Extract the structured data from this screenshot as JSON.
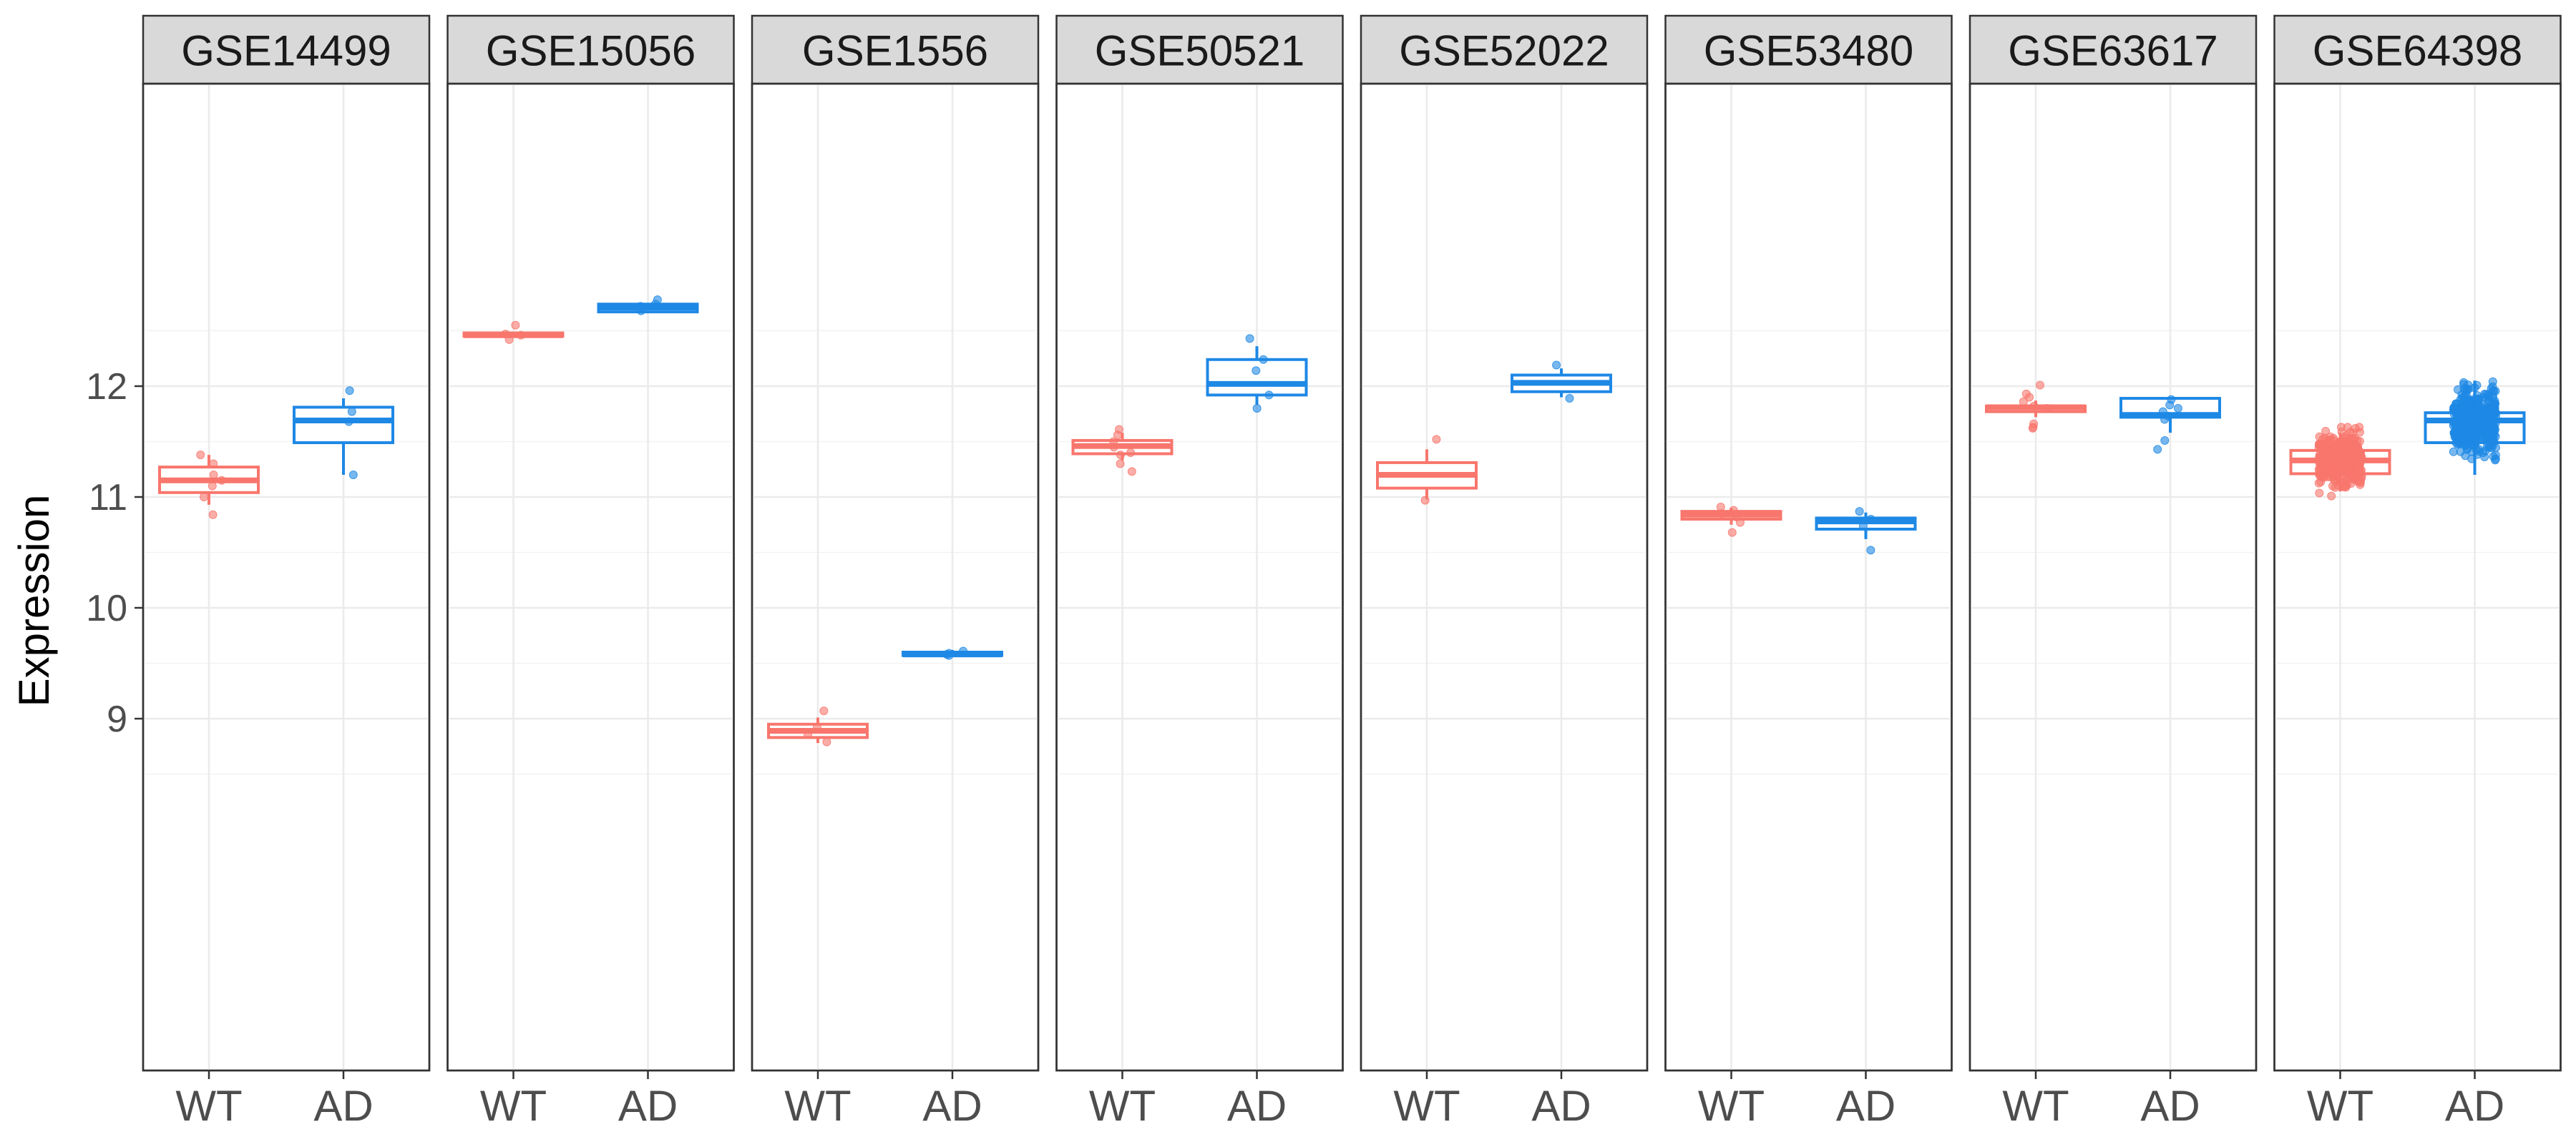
{
  "chart_data": {
    "type": "boxplot",
    "ylabel": "Expression",
    "xlabel": "",
    "ylim": [
      8.6,
      13.0
    ],
    "yticks": [
      9,
      10,
      11,
      12
    ],
    "grid": true,
    "colors": {
      "WT": "#F8766D",
      "AD": "#1E88E5"
    },
    "groups": [
      "WT",
      "AD"
    ],
    "panels": [
      {
        "name": "GSE14499",
        "WT": {
          "lower": 10.93,
          "q1": 11.04,
          "median": 11.15,
          "q3": 11.27,
          "upper": 11.38,
          "points": [
            10.84,
            11.0,
            11.1,
            11.15,
            11.2,
            11.3,
            11.38
          ]
        },
        "AD": {
          "lower": 11.2,
          "q1": 11.49,
          "median": 11.69,
          "q3": 11.81,
          "upper": 11.89,
          "points": [
            11.2,
            11.68,
            11.77,
            11.96
          ]
        }
      },
      {
        "name": "GSE15056",
        "WT": {
          "lower": 12.45,
          "q1": 12.45,
          "median": 12.46,
          "q3": 12.48,
          "upper": 12.49,
          "points": [
            12.42,
            12.46,
            12.47,
            12.55
          ]
        },
        "AD": {
          "lower": 12.67,
          "q1": 12.67,
          "median": 12.71,
          "q3": 12.74,
          "upper": 12.75,
          "points": [
            12.68,
            12.72,
            12.74,
            12.78
          ]
        }
      },
      {
        "name": "GSE1556",
        "WT": {
          "lower": 8.78,
          "q1": 8.83,
          "median": 8.89,
          "q3": 8.95,
          "upper": 9.01,
          "points": [
            8.79,
            8.86,
            8.92,
            9.07
          ]
        },
        "AD": {
          "lower": 9.56,
          "q1": 9.57,
          "median": 9.58,
          "q3": 9.6,
          "upper": 9.62,
          "points": [
            9.57,
            9.58,
            9.59,
            9.61
          ]
        }
      },
      {
        "name": "GSE50521",
        "WT": {
          "lower": 11.33,
          "q1": 11.39,
          "median": 11.46,
          "q3": 11.51,
          "upper": 11.58,
          "points": [
            11.23,
            11.3,
            11.38,
            11.4,
            11.45,
            11.5,
            11.56,
            11.61
          ]
        },
        "AD": {
          "lower": 11.83,
          "q1": 11.92,
          "median": 12.02,
          "q3": 12.24,
          "upper": 12.36,
          "points": [
            11.8,
            11.92,
            12.14,
            12.24,
            12.43
          ]
        }
      },
      {
        "name": "GSE52022",
        "WT": {
          "lower": 10.98,
          "q1": 11.08,
          "median": 11.2,
          "q3": 11.31,
          "upper": 11.43,
          "points": [
            10.97,
            11.52
          ]
        },
        "AD": {
          "lower": 11.9,
          "q1": 11.95,
          "median": 12.03,
          "q3": 12.1,
          "upper": 12.16,
          "points": [
            11.89,
            12.19
          ]
        }
      },
      {
        "name": "GSE53480",
        "WT": {
          "lower": 10.75,
          "q1": 10.8,
          "median": 10.84,
          "q3": 10.87,
          "upper": 10.9,
          "points": [
            10.68,
            10.77,
            10.82,
            10.85,
            10.88,
            10.91
          ]
        },
        "AD": {
          "lower": 10.62,
          "q1": 10.71,
          "median": 10.78,
          "q3": 10.81,
          "upper": 10.86,
          "points": [
            10.52,
            10.74,
            10.8,
            10.87
          ]
        }
      },
      {
        "name": "GSE63617",
        "WT": {
          "lower": 11.72,
          "q1": 11.77,
          "median": 11.81,
          "q3": 11.82,
          "upper": 11.87,
          "points": [
            11.62,
            11.63,
            11.66,
            11.8,
            11.82,
            11.86,
            11.9,
            11.93,
            12.01
          ]
        },
        "AD": {
          "lower": 11.58,
          "q1": 11.72,
          "median": 11.74,
          "q3": 11.89,
          "upper": 11.9,
          "points": [
            11.43,
            11.51,
            11.7,
            11.73,
            11.77,
            11.8,
            11.83,
            11.88
          ]
        }
      },
      {
        "name": "GSE64398",
        "WT": {
          "lower": 11.05,
          "q1": 11.21,
          "median": 11.33,
          "q3": 11.42,
          "upper": 11.58,
          "points": []
        },
        "AD": {
          "lower": 11.2,
          "q1": 11.49,
          "median": 11.69,
          "q3": 11.76,
          "upper": 12.05,
          "points": []
        }
      }
    ]
  }
}
